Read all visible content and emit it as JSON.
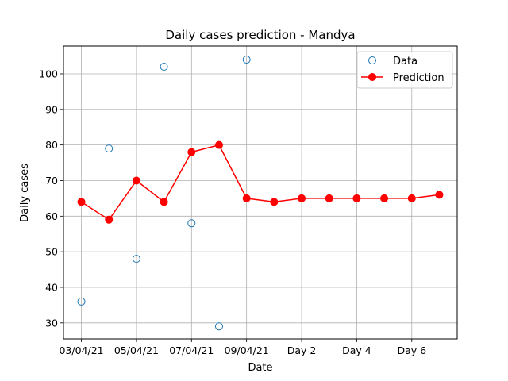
{
  "chart_data": {
    "type": "line",
    "title": "Daily cases prediction - Mandya",
    "xlabel": "Date",
    "ylabel": "Daily cases",
    "x_index": [
      0,
      1,
      2,
      3,
      4,
      5,
      6,
      7,
      8,
      9,
      10,
      11,
      12,
      13
    ],
    "x_ticks": [
      {
        "at": 0,
        "label": "03/04/21"
      },
      {
        "at": 2,
        "label": "05/04/21"
      },
      {
        "at": 4,
        "label": "07/04/21"
      },
      {
        "at": 6,
        "label": "09/04/21"
      },
      {
        "at": 8,
        "label": "Day 2"
      },
      {
        "at": 10,
        "label": "Day 4"
      },
      {
        "at": 12,
        "label": "Day 6"
      }
    ],
    "xlim": [
      -0.65,
      13.65
    ],
    "ylim": [
      25.5,
      107.8
    ],
    "y_ticks": [
      30,
      40,
      50,
      60,
      70,
      80,
      90,
      100
    ],
    "grid": true,
    "legend": "top-right",
    "series": [
      {
        "name": "Data",
        "style": "markers-open",
        "color": "#1f77b4",
        "x": [
          0,
          1,
          2,
          3,
          4,
          5,
          6
        ],
        "values": [
          36,
          79,
          48,
          102,
          58,
          29,
          104
        ]
      },
      {
        "name": "Prediction",
        "style": "line-markers",
        "color": "#ff0000",
        "x": [
          0,
          1,
          2,
          3,
          4,
          5,
          6,
          7,
          8,
          9,
          10,
          11,
          12,
          13
        ],
        "values": [
          64,
          59,
          70,
          64,
          78,
          80,
          65,
          64,
          65,
          65,
          65,
          65,
          65,
          66
        ]
      }
    ]
  }
}
